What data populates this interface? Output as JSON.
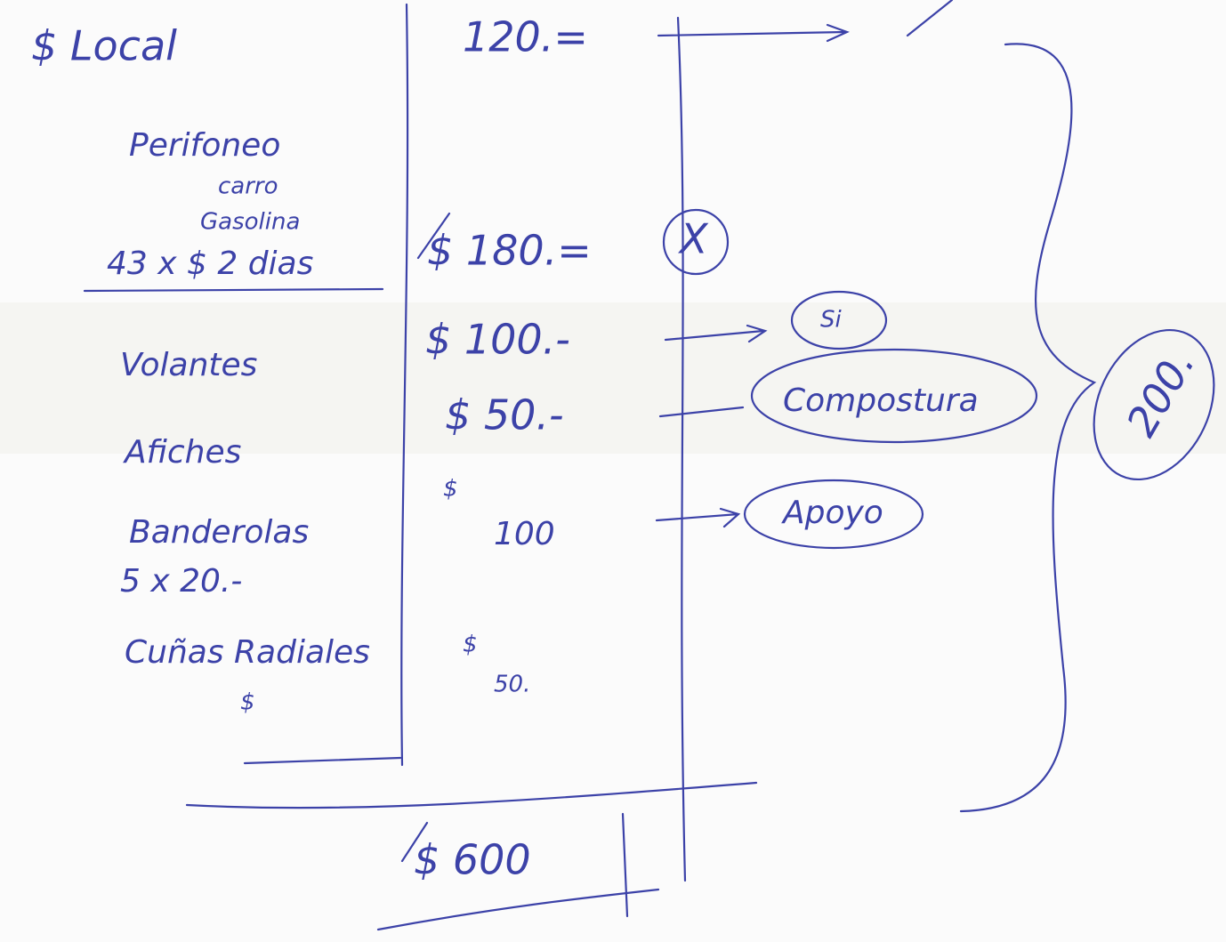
{
  "left_column": [
    "$ Local",
    "Perifoneo",
    "carro",
    "Gasolina",
    "43 x $ 2 dias",
    "Volantes",
    "Afiches",
    "Banderolas",
    "5 x 20.-",
    "Cuñas Radiales",
    "$"
  ],
  "amounts": [
    "120.=",
    "$ 180.=",
    "$ 100.-",
    "$ 50.-",
    "$",
    "100",
    "$",
    "50."
  ],
  "total": "$ 600",
  "notes": [
    "X",
    "Si",
    "Compostura",
    "Apoyo"
  ],
  "subtotal": "200."
}
